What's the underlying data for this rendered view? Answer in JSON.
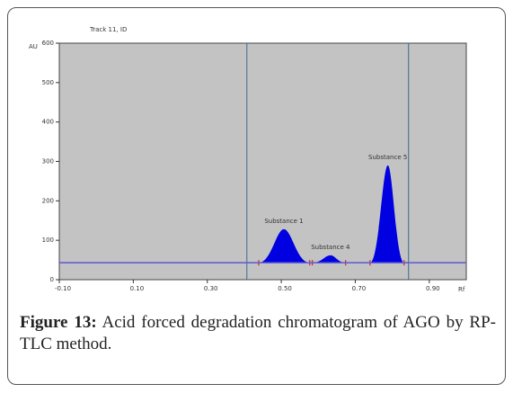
{
  "chart_data": {
    "type": "chromatogram",
    "title": "Track 11, ID",
    "ylabel": "AU",
    "xlabel": "Rf",
    "xlim": [
      -0.1,
      1.0
    ],
    "ylim": [
      0,
      600
    ],
    "xticks": [
      {
        "value": -0.1,
        "label": "-0.10"
      },
      {
        "value": 0.1,
        "label": "0.10"
      },
      {
        "value": 0.3,
        "label": "0.30"
      },
      {
        "value": 0.5,
        "label": "0.50"
      },
      {
        "value": 0.7,
        "label": "0.70"
      },
      {
        "value": 0.9,
        "label": "0.90"
      }
    ],
    "yticks": [
      0,
      100,
      200,
      300,
      400,
      500,
      600
    ],
    "baseline": 43,
    "markers": [
      0.407,
      0.844
    ],
    "color": "#0000e0",
    "peaks": [
      {
        "name": "Substance 1",
        "x": 0.507,
        "height": 128,
        "start": 0.439,
        "end": 0.577
      },
      {
        "name": "Substance 4",
        "x": 0.633,
        "height": 62,
        "start": 0.584,
        "end": 0.674
      },
      {
        "name": "Substance 5",
        "x": 0.788,
        "height": 290,
        "start": 0.74,
        "end": 0.832
      }
    ]
  },
  "caption": {
    "label": "Figure 13:",
    "text": "Acid forced degradation chromatogram of AGO by RP-TLC method."
  }
}
